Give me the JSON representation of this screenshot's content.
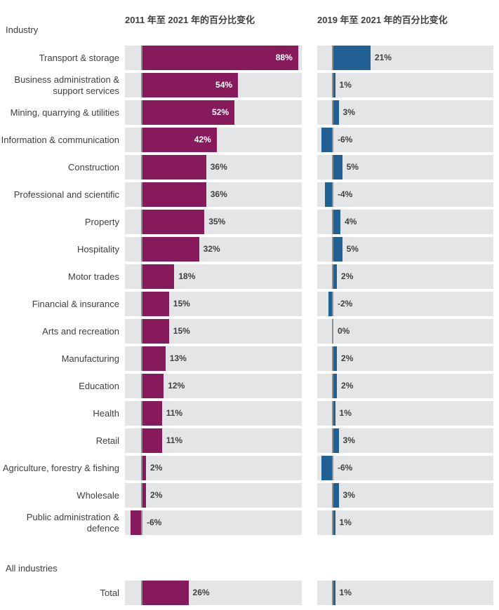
{
  "headers": {
    "row_group_label": "Industry",
    "left_chart_title": "2011 年至 2021 年的百分比变化",
    "right_chart_title": "2019 年至 2021 年的百分比变化",
    "total_group_label": "All industries"
  },
  "colors": {
    "left_bar": "#871A5B",
    "right_bar": "#206095",
    "track": "#E4E5E6",
    "baseline": "#8F8F8F",
    "text": "#404040",
    "inside_label": "#FFFFFF"
  },
  "rows": [
    {
      "label": "Transport & storage",
      "v1": 88,
      "v1_text": "88%",
      "v2": 21,
      "v2_text": "21%"
    },
    {
      "label": "Business administration & support services",
      "v1": 54,
      "v1_text": "54%",
      "v2": 1,
      "v2_text": "1%"
    },
    {
      "label": "Mining, quarrying & utilities",
      "v1": 52,
      "v1_text": "52%",
      "v2": 3,
      "v2_text": "3%"
    },
    {
      "label": "Information & communication",
      "v1": 42,
      "v1_text": "42%",
      "v2": -6,
      "v2_text": "-6%"
    },
    {
      "label": "Construction",
      "v1": 36,
      "v1_text": "36%",
      "v2": 5,
      "v2_text": "5%"
    },
    {
      "label": "Professional and scientific",
      "v1": 36,
      "v1_text": "36%",
      "v2": -4,
      "v2_text": "-4%"
    },
    {
      "label": "Property",
      "v1": 35,
      "v1_text": "35%",
      "v2": 4,
      "v2_text": "4%"
    },
    {
      "label": "Hospitality",
      "v1": 32,
      "v1_text": "32%",
      "v2": 5,
      "v2_text": "5%"
    },
    {
      "label": "Motor trades",
      "v1": 18,
      "v1_text": "18%",
      "v2": 2,
      "v2_text": "2%"
    },
    {
      "label": "Financial & insurance",
      "v1": 15,
      "v1_text": "15%",
      "v2": -2,
      "v2_text": "-2%"
    },
    {
      "label": "Arts and recreation",
      "v1": 15,
      "v1_text": "15%",
      "v2": 0,
      "v2_text": "0%"
    },
    {
      "label": "Manufacturing",
      "v1": 13,
      "v1_text": "13%",
      "v2": 2,
      "v2_text": "2%"
    },
    {
      "label": "Education",
      "v1": 12,
      "v1_text": "12%",
      "v2": 2,
      "v2_text": "2%"
    },
    {
      "label": "Health",
      "v1": 11,
      "v1_text": "11%",
      "v2": 1,
      "v2_text": "1%"
    },
    {
      "label": "Retail",
      "v1": 11,
      "v1_text": "11%",
      "v2": 3,
      "v2_text": "3%"
    },
    {
      "label": "Agriculture, forestry & fishing",
      "v1": 2,
      "v1_text": "2%",
      "v2": -6,
      "v2_text": "-6%"
    },
    {
      "label": "Wholesale",
      "v1": 2,
      "v1_text": "2%",
      "v2": 3,
      "v2_text": "3%"
    },
    {
      "label": "Public administration & defence",
      "v1": -6,
      "v1_text": "-6%",
      "v2": 1,
      "v2_text": "1%"
    }
  ],
  "total_row": {
    "label": "Total",
    "v1": 26,
    "v1_text": "26%",
    "v2": 1,
    "v2_text": "1%"
  },
  "chart_data": {
    "type": "bar",
    "orientation": "horizontal",
    "title": "",
    "xlabel": "Percentage change",
    "ylabel": "Industry",
    "xlim": [
      -10,
      90
    ],
    "grid": false,
    "legend_position": "column-headers",
    "value_suffix": "%",
    "categories": [
      "Transport & storage",
      "Business administration & support services",
      "Mining, quarrying & utilities",
      "Information & communication",
      "Construction",
      "Professional and scientific",
      "Property",
      "Hospitality",
      "Motor trades",
      "Financial & insurance",
      "Arts and recreation",
      "Manufacturing",
      "Education",
      "Health",
      "Retail",
      "Agriculture, forestry & fishing",
      "Wholesale",
      "Public administration & defence",
      "Total"
    ],
    "series": [
      {
        "name": "2011 年至 2021 年的百分比变化",
        "color": "#871A5B",
        "values": [
          88,
          54,
          52,
          42,
          36,
          36,
          35,
          32,
          18,
          15,
          15,
          13,
          12,
          11,
          11,
          2,
          2,
          -6,
          26
        ]
      },
      {
        "name": "2019 年至 2021 年的百分比变化",
        "color": "#206095",
        "values": [
          21,
          1,
          3,
          -6,
          5,
          -4,
          4,
          5,
          2,
          -2,
          0,
          2,
          2,
          1,
          3,
          -6,
          3,
          1,
          1
        ]
      }
    ]
  }
}
